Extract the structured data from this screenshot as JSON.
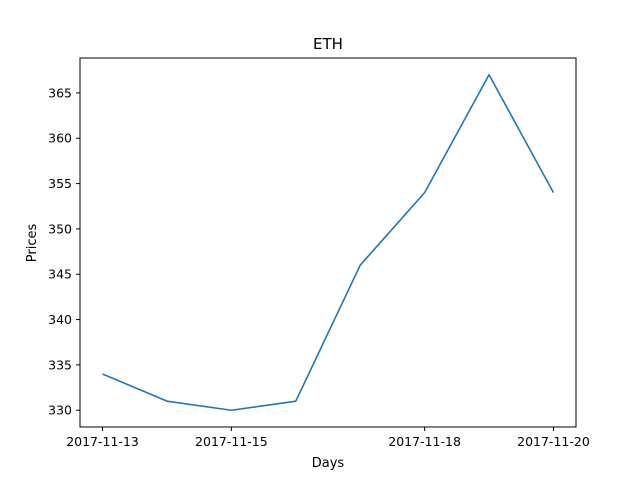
{
  "chart_data": {
    "type": "line",
    "title": "ETH",
    "xlabel": "Days",
    "ylabel": "Prices",
    "x": [
      "2017-11-13",
      "2017-11-14",
      "2017-11-15",
      "2017-11-16",
      "2017-11-17",
      "2017-11-18",
      "2017-11-19",
      "2017-11-20"
    ],
    "series": [
      {
        "values": [
          334,
          331,
          330,
          331,
          346,
          354,
          367,
          354
        ],
        "color": "#1f77b4"
      }
    ],
    "xticks": [
      "2017-11-13",
      "2017-11-15",
      "2017-11-18",
      "2017-11-20"
    ],
    "yticks": [
      330,
      335,
      340,
      345,
      350,
      355,
      360,
      365
    ],
    "xlim": [
      "2017-11-12 15:36",
      "2017-11-20 08:24"
    ],
    "ylim": [
      328.15,
      368.85
    ],
    "grid": false,
    "legend": "none"
  }
}
